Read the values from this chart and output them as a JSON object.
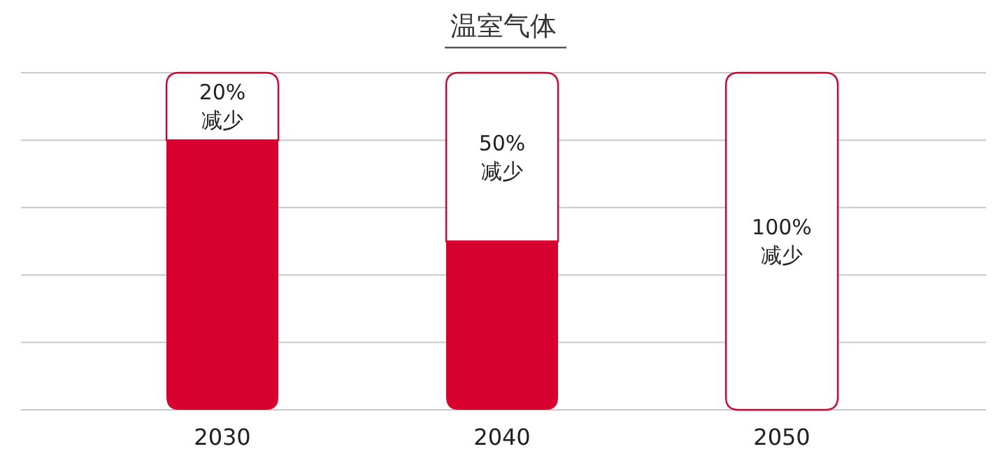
{
  "chart_data": {
    "type": "bar",
    "title": "温室气体",
    "categories": [
      "2030",
      "2040",
      "2050"
    ],
    "stacked": true,
    "ylim": [
      0,
      100
    ],
    "grid": "y",
    "series": [
      {
        "color": "#d7002f",
        "values": [
          80,
          50,
          0
        ]
      },
      {
        "color": "#d7002f",
        "values": [
          20,
          50,
          100
        ],
        "value_labels": [
          "20% 减少",
          "50% 减少",
          "100% 减少"
        ]
      }
    ]
  }
}
